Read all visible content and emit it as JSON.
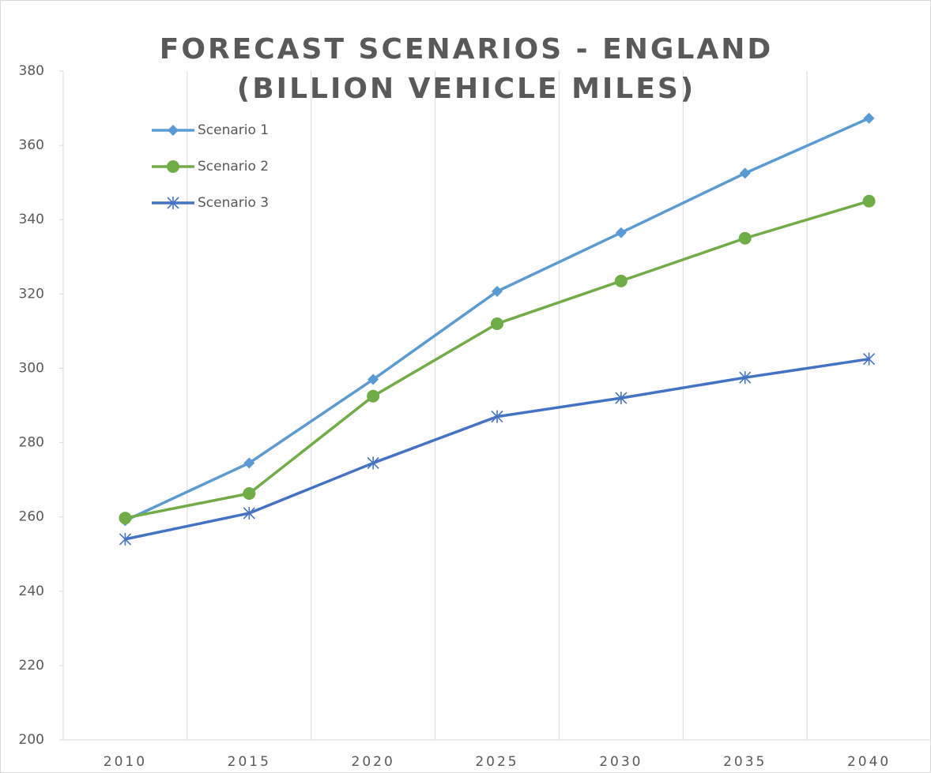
{
  "chart_data": {
    "type": "line",
    "title": "FORECAST SCENARIOS - ENGLAND (BILLION VEHICLE MILES)",
    "categories": [
      "2010",
      "2015",
      "2020",
      "2025",
      "2030",
      "2035",
      "2040"
    ],
    "series": [
      {
        "name": "Scenario 1",
        "color": "#5b9bd5",
        "marker": "diamond",
        "values": [
          259,
          274.5,
          297,
          320.7,
          336.5,
          352.5,
          367.3
        ]
      },
      {
        "name": "Scenario 2",
        "color": "#70ad47",
        "marker": "circle",
        "values": [
          259.7,
          266.3,
          292.5,
          312,
          323.5,
          335,
          345
        ]
      },
      {
        "name": "Scenario 3",
        "color": "#4472c4",
        "marker": "star",
        "values": [
          254,
          261,
          274.5,
          287,
          292,
          297.5,
          302.5
        ]
      }
    ],
    "ylim": [
      200,
      380
    ],
    "yticks": [
      200,
      220,
      240,
      260,
      280,
      300,
      320,
      340,
      360,
      380
    ],
    "grid": "vertical",
    "legend": "upper left"
  }
}
